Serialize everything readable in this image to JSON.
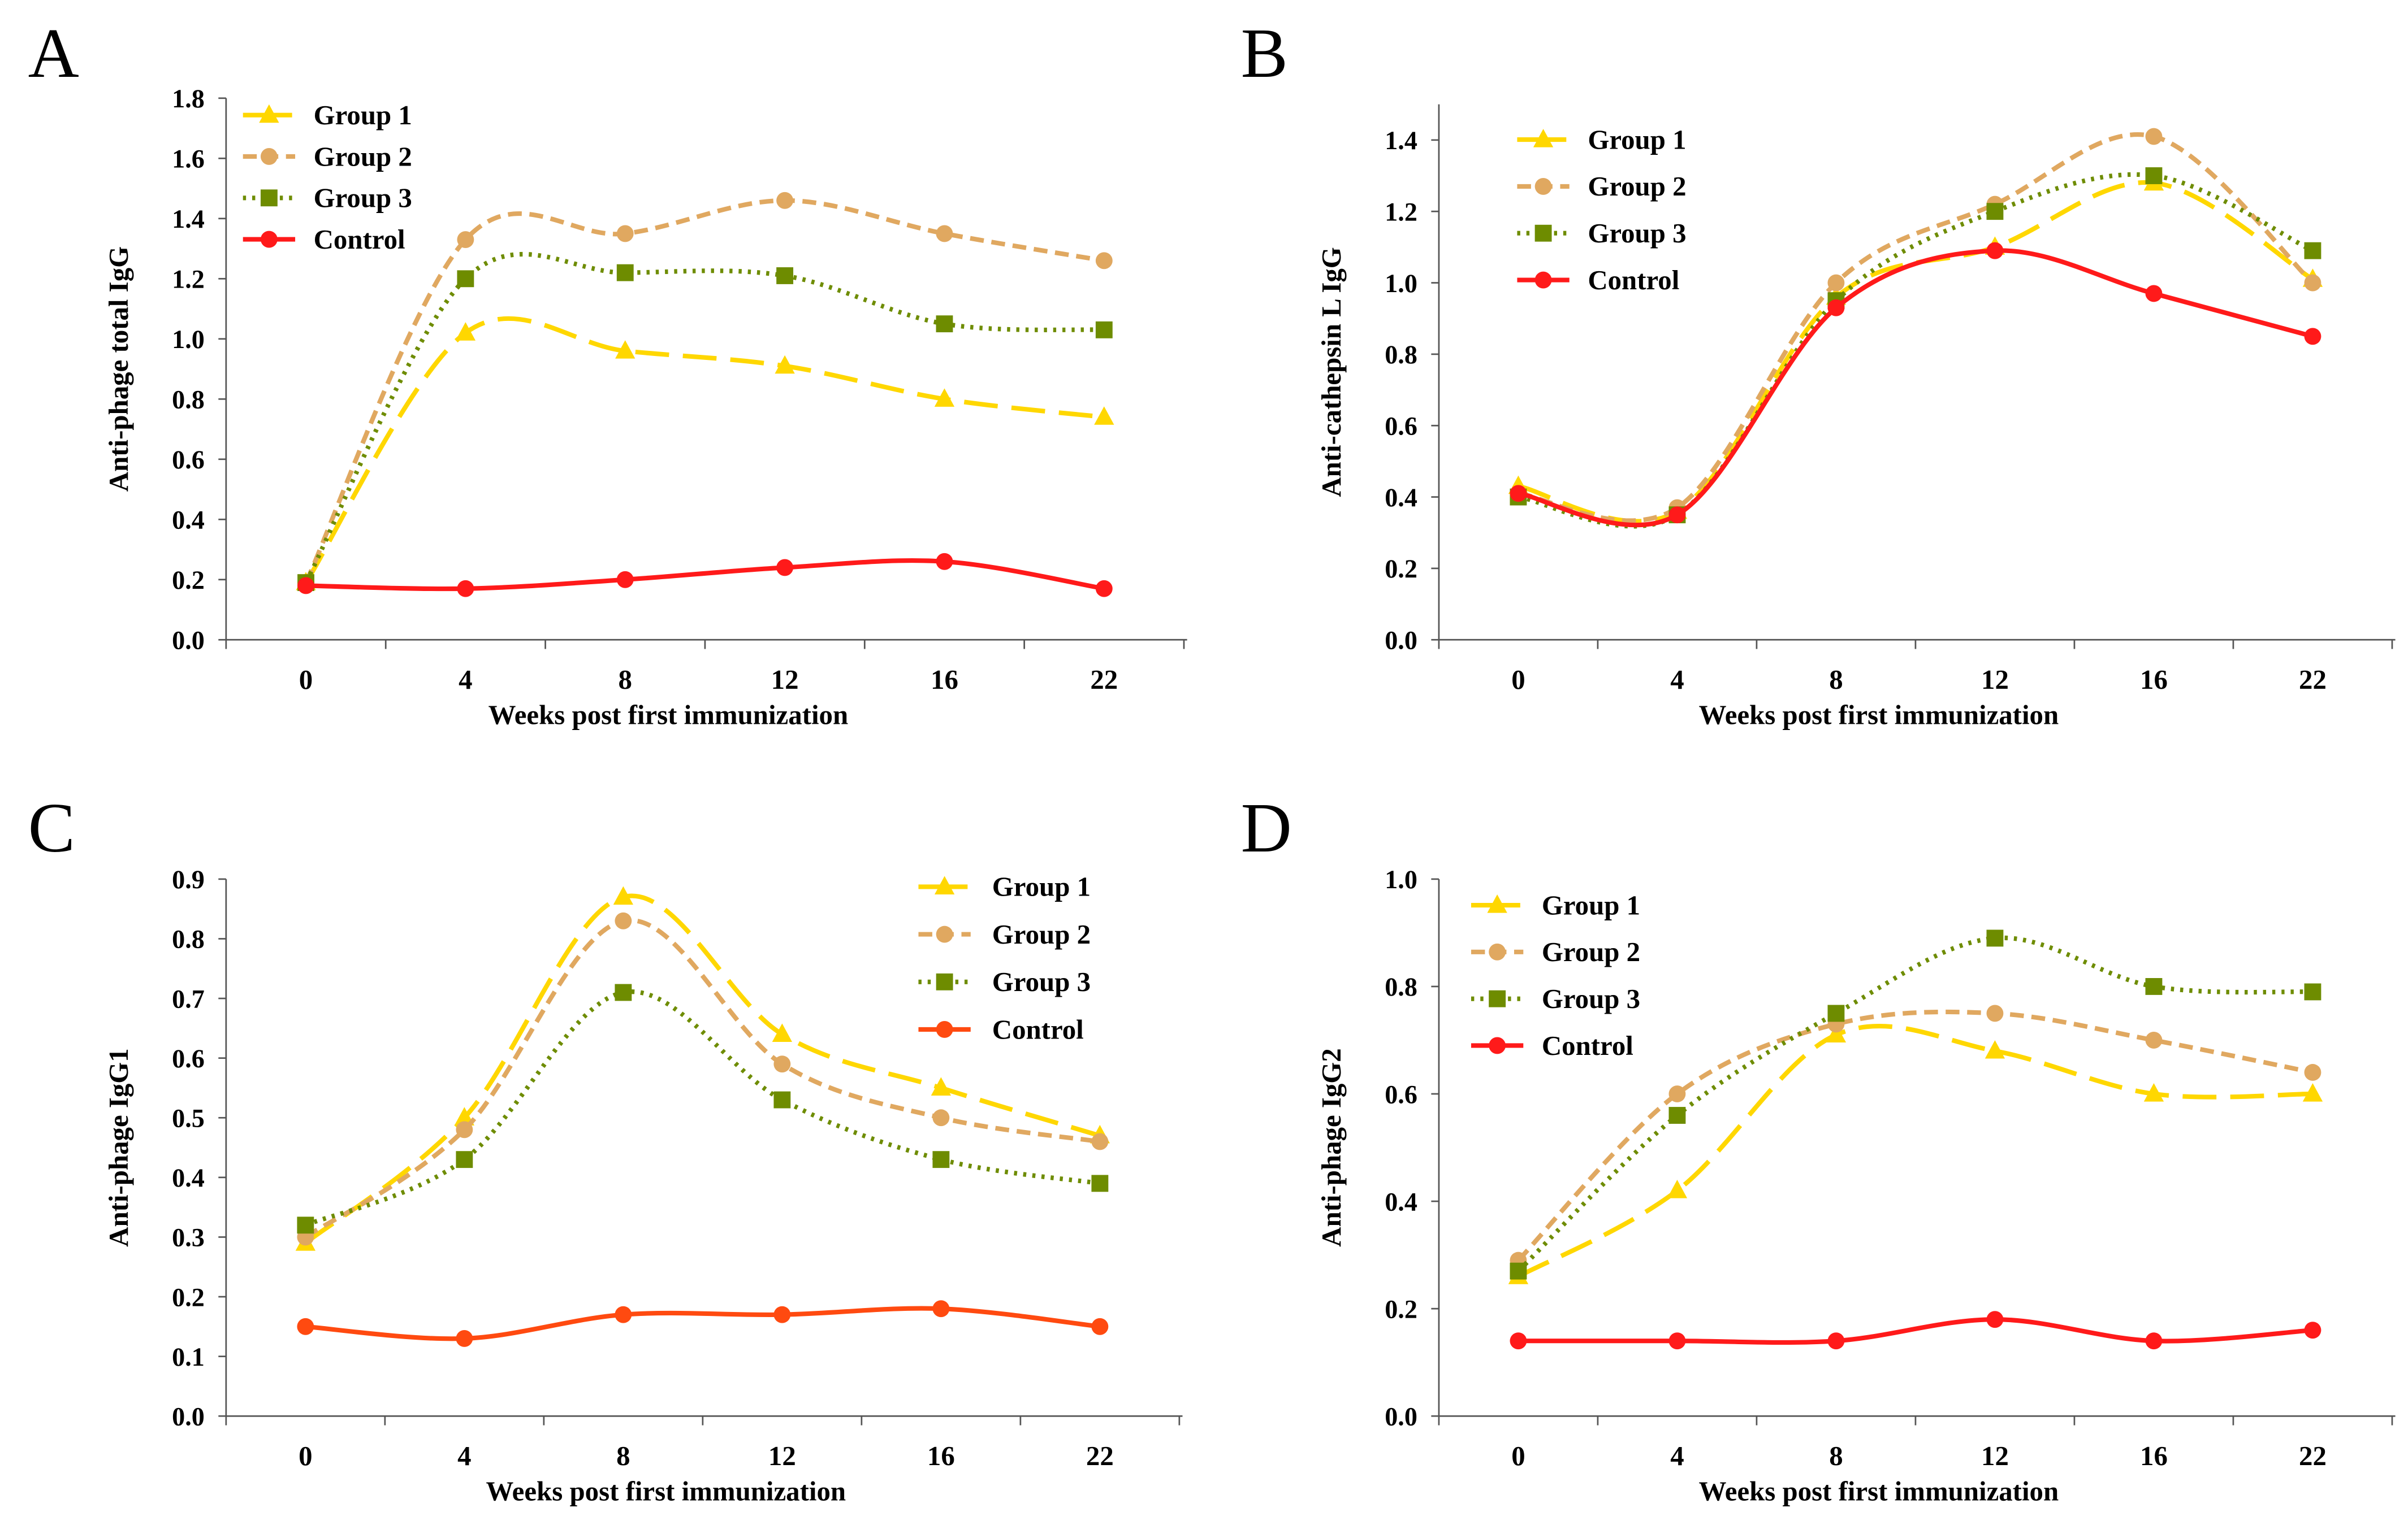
{
  "colors": {
    "Group 1": "#ffd700",
    "Group 2": "#e0a860",
    "Group 3": "#6e8c00",
    "Control": "#ff1a1a",
    "Control C": "#ff4a10"
  },
  "chart_data": [
    {
      "panel": "A",
      "type": "line",
      "ylabel": "Anti-phage total IgG",
      "xlabel": "Weeks post first immunization",
      "categories": [
        "0",
        "4",
        "8",
        "12",
        "16",
        "22"
      ],
      "ylim": [
        0,
        1.8
      ],
      "yticks": [
        "0.0",
        "0.2",
        "0.4",
        "0.6",
        "0.8",
        "1.0",
        "1.2",
        "1.4",
        "1.6",
        "1.8"
      ],
      "legend": "top-left",
      "grid": false,
      "series": [
        {
          "name": "Group 1",
          "values": [
            0.19,
            1.02,
            0.96,
            0.91,
            0.8,
            0.74
          ]
        },
        {
          "name": "Group 2",
          "values": [
            0.19,
            1.33,
            1.35,
            1.46,
            1.35,
            1.26
          ]
        },
        {
          "name": "Group 3",
          "values": [
            0.19,
            1.2,
            1.22,
            1.21,
            1.05,
            1.03
          ]
        },
        {
          "name": "Control",
          "values": [
            0.18,
            0.17,
            0.2,
            0.24,
            0.26,
            0.17
          ]
        }
      ]
    },
    {
      "panel": "B",
      "type": "line",
      "ylabel": "Anti-cathepsin L IgG",
      "xlabel": "Weeks post first immunization",
      "categories": [
        "0",
        "4",
        "8",
        "12",
        "16",
        "22"
      ],
      "ylim": [
        0,
        1.5
      ],
      "yticks": [
        "0.0",
        "0.2",
        "0.4",
        "0.6",
        "0.8",
        "1.0",
        "1.2",
        "1.4"
      ],
      "legend": "top-left",
      "grid": false,
      "series": [
        {
          "name": "Group 1",
          "values": [
            0.43,
            0.36,
            0.96,
            1.1,
            1.28,
            1.01
          ]
        },
        {
          "name": "Group 2",
          "values": [
            0.41,
            0.37,
            1.0,
            1.22,
            1.41,
            1.0
          ]
        },
        {
          "name": "Group 3",
          "values": [
            0.4,
            0.35,
            0.95,
            1.2,
            1.3,
            1.09
          ]
        },
        {
          "name": "Control",
          "values": [
            0.41,
            0.35,
            0.93,
            1.09,
            0.97,
            0.85
          ]
        }
      ]
    },
    {
      "panel": "C",
      "type": "line",
      "ylabel": "Anti-phage  IgG1",
      "xlabel": "Weeks post first immunization",
      "categories": [
        "0",
        "4",
        "8",
        "12",
        "16",
        "22"
      ],
      "ylim": [
        0,
        0.9
      ],
      "yticks": [
        "0.0",
        "0.1",
        "0.2",
        "0.3",
        "0.4",
        "0.5",
        "0.6",
        "0.7",
        "0.8",
        "0.9"
      ],
      "legend": "top-right",
      "grid": false,
      "series": [
        {
          "name": "Group 1",
          "values": [
            0.29,
            0.5,
            0.87,
            0.64,
            0.55,
            0.47
          ]
        },
        {
          "name": "Group 2",
          "values": [
            0.3,
            0.48,
            0.83,
            0.59,
            0.5,
            0.46
          ]
        },
        {
          "name": "Group 3",
          "values": [
            0.32,
            0.43,
            0.71,
            0.53,
            0.43,
            0.39
          ]
        },
        {
          "name": "Control",
          "values": [
            0.15,
            0.13,
            0.17,
            0.17,
            0.18,
            0.15
          ]
        }
      ]
    },
    {
      "panel": "D",
      "type": "line",
      "ylabel": "Anti-phage  IgG2",
      "xlabel": "Weeks post first immunization",
      "categories": [
        "0",
        "4",
        "8",
        "12",
        "16",
        "22"
      ],
      "ylim": [
        0,
        1.0
      ],
      "yticks": [
        "0.0",
        "0.2",
        "0.4",
        "0.6",
        "0.8",
        "1.0"
      ],
      "legend": "top-left",
      "grid": false,
      "series": [
        {
          "name": "Group 1",
          "values": [
            0.26,
            0.42,
            0.71,
            0.68,
            0.6,
            0.6
          ]
        },
        {
          "name": "Group 2",
          "values": [
            0.29,
            0.6,
            0.73,
            0.75,
            0.7,
            0.64
          ]
        },
        {
          "name": "Group 3",
          "values": [
            0.27,
            0.56,
            0.75,
            0.89,
            0.8,
            0.79
          ]
        },
        {
          "name": "Control",
          "values": [
            0.14,
            0.14,
            0.14,
            0.18,
            0.14,
            0.16
          ]
        }
      ]
    }
  ]
}
